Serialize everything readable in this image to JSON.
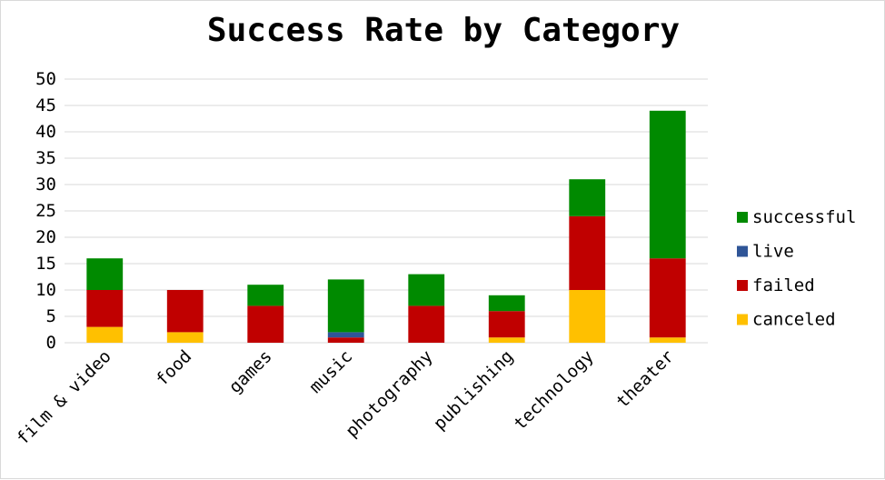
{
  "chart_data": {
    "type": "bar",
    "stacked": true,
    "title": "Success Rate by Category",
    "xlabel": "",
    "ylabel": "",
    "categories": [
      "film & video",
      "food",
      "games",
      "music",
      "photography",
      "publishing",
      "technology",
      "theater"
    ],
    "series": [
      {
        "name": "canceled",
        "color": "#ffc000",
        "values": [
          3,
          2,
          0,
          0,
          0,
          1,
          10,
          1
        ]
      },
      {
        "name": "failed",
        "color": "#c00000",
        "values": [
          7,
          8,
          7,
          1,
          7,
          5,
          14,
          15
        ]
      },
      {
        "name": "live",
        "color": "#2f5597",
        "values": [
          0,
          0,
          0,
          1,
          0,
          0,
          0,
          0
        ]
      },
      {
        "name": "successful",
        "color": "#008a00",
        "values": [
          6,
          0,
          4,
          10,
          6,
          3,
          7,
          28
        ]
      }
    ],
    "ylim": [
      0,
      50
    ],
    "yticks": [
      0,
      5,
      10,
      15,
      20,
      25,
      30,
      35,
      40,
      45,
      50
    ],
    "grid": true,
    "legend_position": "right"
  }
}
